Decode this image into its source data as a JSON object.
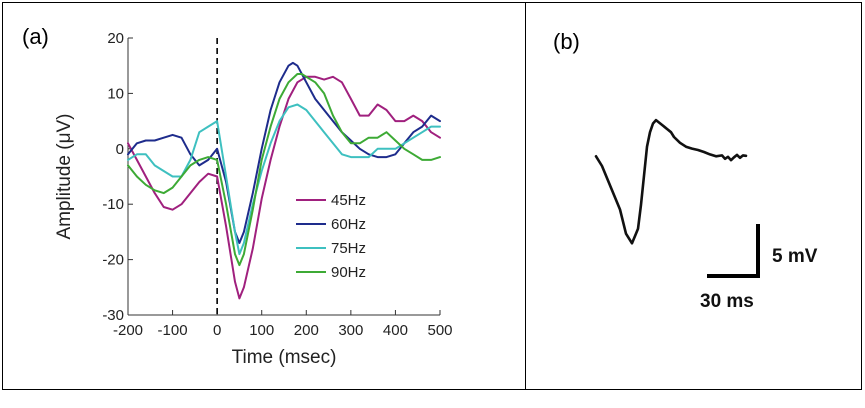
{
  "panels": {
    "a_label": "(a)",
    "b_label": "(b)"
  },
  "chart_data": [
    {
      "type": "line",
      "panel": "(a)",
      "title": "",
      "xlabel": "Time (msec)",
      "ylabel": "Amplitude (μV)",
      "xlim": [
        -200,
        500
      ],
      "ylim": [
        -30,
        20
      ],
      "xticks": [
        -200,
        -100,
        0,
        100,
        200,
        300,
        400,
        500
      ],
      "xtick_labels": [
        "-200",
        "-100",
        "0",
        "100",
        "200",
        "300",
        "400",
        "500"
      ],
      "yticks": [
        -30,
        -20,
        -10,
        0,
        10,
        20
      ],
      "ytick_labels": [
        "-30",
        "-20",
        "-10",
        "0",
        "10",
        "20"
      ],
      "marker_line_x": 0,
      "legend_position": "center-right",
      "series": [
        {
          "name": "45Hz",
          "color": "#A0207E",
          "x": [
            -200,
            -180,
            -160,
            -140,
            -120,
            -100,
            -80,
            -60,
            -40,
            -20,
            0,
            20,
            40,
            50,
            60,
            80,
            100,
            120,
            140,
            160,
            180,
            200,
            220,
            240,
            260,
            280,
            300,
            320,
            340,
            360,
            380,
            400,
            420,
            440,
            460,
            480,
            500
          ],
          "y": [
            1,
            -2,
            -5,
            -8,
            -10.5,
            -11,
            -10,
            -8,
            -6,
            -4.5,
            -5,
            -14,
            -24,
            -27,
            -25,
            -18,
            -9,
            -2,
            4,
            9,
            12,
            13,
            13,
            12.5,
            13,
            12,
            9,
            6,
            6,
            8,
            7,
            5,
            5,
            6,
            5,
            3,
            2
          ]
        },
        {
          "name": "60Hz",
          "color": "#1E2C8C",
          "x": [
            -200,
            -180,
            -160,
            -140,
            -120,
            -100,
            -80,
            -60,
            -40,
            -20,
            0,
            20,
            40,
            50,
            60,
            80,
            100,
            120,
            140,
            160,
            170,
            180,
            200,
            220,
            240,
            260,
            280,
            300,
            320,
            340,
            360,
            380,
            400,
            420,
            440,
            460,
            480,
            500
          ],
          "y": [
            -1,
            1,
            1.5,
            1.5,
            2,
            2.5,
            2,
            -1,
            -3,
            -2,
            0,
            -6,
            -15,
            -17,
            -15,
            -8,
            0,
            7,
            12,
            15,
            15.5,
            15,
            12,
            9,
            7,
            5,
            3,
            1.5,
            0,
            -1,
            -1.5,
            -1.5,
            -1,
            1,
            3,
            4,
            6,
            5
          ]
        },
        {
          "name": "75Hz",
          "color": "#3EC0C0",
          "x": [
            -200,
            -180,
            -160,
            -140,
            -120,
            -100,
            -80,
            -60,
            -40,
            -20,
            0,
            20,
            40,
            50,
            60,
            80,
            100,
            120,
            140,
            160,
            180,
            200,
            220,
            240,
            260,
            280,
            300,
            320,
            340,
            360,
            380,
            400,
            420,
            440,
            460,
            480,
            500
          ],
          "y": [
            -2,
            -1,
            -1,
            -3,
            -4,
            -5,
            -5,
            -2,
            3,
            4,
            5,
            -5,
            -15,
            -19,
            -17,
            -10,
            -4,
            1,
            5,
            7.5,
            8,
            7,
            5,
            3,
            1,
            -1,
            -1.5,
            -1.5,
            -1.5,
            0,
            0,
            0,
            1,
            2,
            3,
            4,
            4
          ]
        },
        {
          "name": "90Hz",
          "color": "#3DAA35",
          "x": [
            -200,
            -180,
            -160,
            -140,
            -120,
            -100,
            -80,
            -60,
            -40,
            -20,
            0,
            20,
            40,
            50,
            60,
            80,
            100,
            120,
            140,
            160,
            180,
            190,
            200,
            220,
            240,
            260,
            280,
            300,
            320,
            340,
            360,
            380,
            400,
            420,
            440,
            460,
            480,
            500
          ],
          "y": [
            -3,
            -5,
            -6.5,
            -7.5,
            -8,
            -7,
            -5,
            -3,
            -2,
            -1.5,
            -2,
            -10,
            -19,
            -21,
            -19,
            -11,
            -2,
            4,
            9,
            12,
            13.5,
            13.5,
            13,
            12,
            10,
            6,
            3,
            1,
            1,
            2,
            2,
            3,
            1.5,
            0,
            -1,
            -2,
            -2,
            -1.5
          ]
        }
      ]
    },
    {
      "type": "line",
      "panel": "(b)",
      "title": "",
      "xlabel": "",
      "ylabel": "",
      "xlim": [
        0,
        100
      ],
      "ylim": [
        -20,
        10
      ],
      "scale_bar_x_label": "30 ms",
      "scale_bar_y_label": "5 mV",
      "series": [
        {
          "name": "waveform",
          "color": "#111111",
          "x": [
            0,
            4,
            8,
            12,
            16,
            20,
            24,
            28,
            30,
            32,
            34,
            36,
            38,
            40,
            42,
            44,
            46,
            48,
            50,
            52,
            56,
            60,
            64,
            68,
            72,
            76,
            80,
            84,
            86,
            88,
            90,
            92,
            94,
            96,
            98,
            100
          ],
          "y": [
            0,
            -2,
            -5,
            -8,
            -11,
            -16,
            -18,
            -15,
            -10,
            -4,
            2,
            5,
            6.8,
            7.5,
            7,
            6.5,
            6,
            5.5,
            5,
            4,
            2.8,
            2,
            1.6,
            1.3,
            0.9,
            0.4,
            0,
            0.2,
            -0.5,
            -0.1,
            -0.8,
            -0.2,
            0.3,
            -0.3,
            0.2,
            0.1
          ]
        }
      ]
    }
  ]
}
